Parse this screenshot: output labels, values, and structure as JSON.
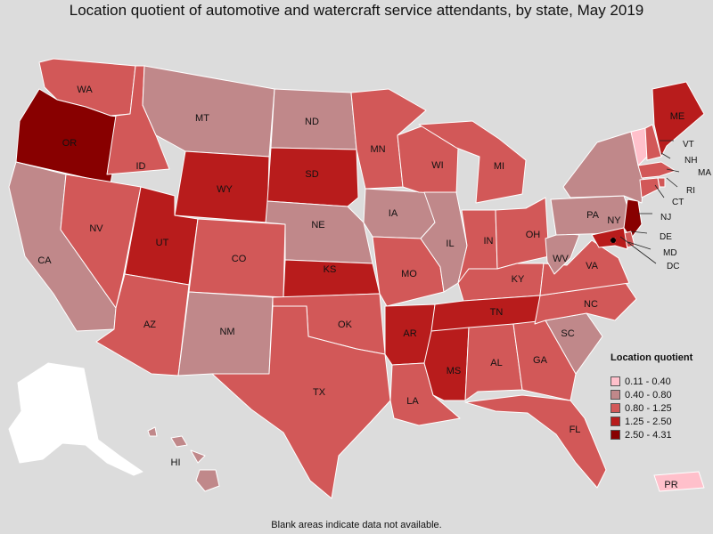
{
  "title": "Location quotient of automotive and watercraft service attendants, by state, May 2019",
  "footnote": "Blank areas indicate data not available.",
  "legend": {
    "title": "Location quotient",
    "bins": [
      {
        "label": "0.11 - 0.40",
        "color": "#ffc0cb"
      },
      {
        "label": "0.40 - 0.80",
        "color": "#c0888a"
      },
      {
        "label": "0.80 - 1.25",
        "color": "#d25858"
      },
      {
        "label": "1.25 - 2.50",
        "color": "#b81c1c"
      },
      {
        "label": "2.50 - 4.31",
        "color": "#880000"
      }
    ]
  },
  "states": {
    "WA": {
      "label": "WA",
      "bin": 2
    },
    "OR": {
      "label": "OR",
      "bin": 4
    },
    "CA": {
      "label": "CA",
      "bin": 1
    },
    "ID": {
      "label": "ID",
      "bin": 2
    },
    "NV": {
      "label": "NV",
      "bin": 2
    },
    "MT": {
      "label": "MT",
      "bin": 1
    },
    "WY": {
      "label": "WY",
      "bin": 3
    },
    "UT": {
      "label": "UT",
      "bin": 3
    },
    "AZ": {
      "label": "AZ",
      "bin": 2
    },
    "CO": {
      "label": "CO",
      "bin": 2
    },
    "NM": {
      "label": "NM",
      "bin": 1
    },
    "ND": {
      "label": "ND",
      "bin": 1
    },
    "SD": {
      "label": "SD",
      "bin": 3
    },
    "NE": {
      "label": "NE",
      "bin": 1
    },
    "KS": {
      "label": "KS",
      "bin": 3
    },
    "OK": {
      "label": "OK",
      "bin": 2
    },
    "TX": {
      "label": "TX",
      "bin": 2
    },
    "MN": {
      "label": "MN",
      "bin": 2
    },
    "IA": {
      "label": "IA",
      "bin": 1
    },
    "MO": {
      "label": "MO",
      "bin": 2
    },
    "AR": {
      "label": "AR",
      "bin": 3
    },
    "LA": {
      "label": "LA",
      "bin": 2
    },
    "WI": {
      "label": "WI",
      "bin": 2
    },
    "IL": {
      "label": "IL",
      "bin": 1
    },
    "MI": {
      "label": "MI",
      "bin": 2
    },
    "IN": {
      "label": "IN",
      "bin": 2
    },
    "OH": {
      "label": "OH",
      "bin": 2
    },
    "KY": {
      "label": "KY",
      "bin": 2
    },
    "TN": {
      "label": "TN",
      "bin": 3
    },
    "MS": {
      "label": "MS",
      "bin": 3
    },
    "AL": {
      "label": "AL",
      "bin": 2
    },
    "GA": {
      "label": "GA",
      "bin": 2
    },
    "FL": {
      "label": "FL",
      "bin": 2
    },
    "SC": {
      "label": "SC",
      "bin": 1
    },
    "NC": {
      "label": "NC",
      "bin": 2
    },
    "VA": {
      "label": "VA",
      "bin": 2
    },
    "WV": {
      "label": "WV",
      "bin": 1
    },
    "PA": {
      "label": "PA",
      "bin": 1
    },
    "NY": {
      "label": "NY",
      "bin": 1
    },
    "VT": {
      "label": "VT",
      "bin": 0
    },
    "NH": {
      "label": "NH",
      "bin": 2
    },
    "ME": {
      "label": "ME",
      "bin": 3
    },
    "MA": {
      "label": "MA",
      "bin": 2
    },
    "RI": {
      "label": "RI",
      "bin": 2
    },
    "CT": {
      "label": "CT",
      "bin": 2
    },
    "NJ": {
      "label": "NJ",
      "bin": 4
    },
    "DE": {
      "label": "DE",
      "bin": 2
    },
    "MD": {
      "label": "MD",
      "bin": 3
    },
    "DC": {
      "label": "DC",
      "bin": 4
    },
    "HI": {
      "label": "HI",
      "bin": 1
    },
    "PR": {
      "label": "PR",
      "bin": 0
    },
    "AK": {
      "label": "",
      "bin": null
    }
  }
}
